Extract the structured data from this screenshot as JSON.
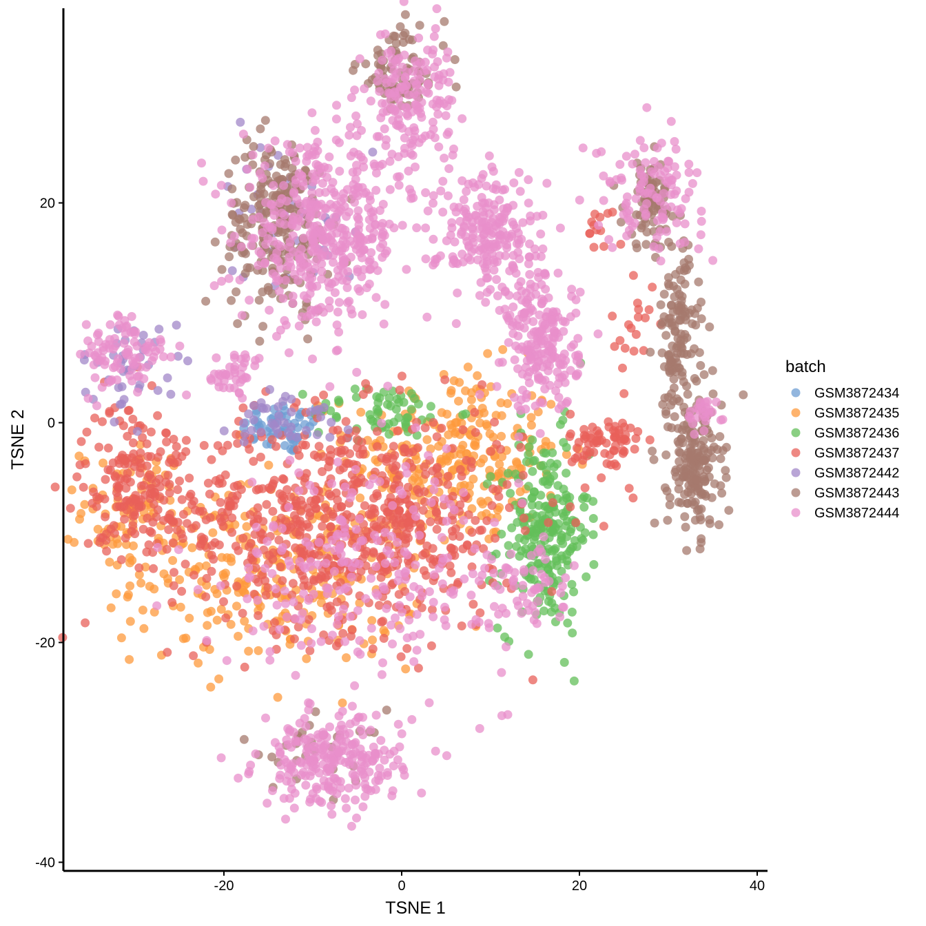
{
  "chart_data": {
    "type": "scatter",
    "xlabel": "TSNE 1",
    "ylabel": "TSNE 2",
    "xlim": [
      -38,
      41
    ],
    "ylim": [
      -41,
      38
    ],
    "x_ticks": [
      -20,
      0,
      20,
      40
    ],
    "y_ticks": [
      -40,
      -20,
      0,
      20
    ],
    "x_tick_labels": [
      "-20",
      "0",
      "20",
      "40"
    ],
    "y_tick_labels": [
      "-40",
      "-20",
      "0",
      "20"
    ],
    "grid": false,
    "legend": {
      "title": "batch",
      "placement": "right",
      "entries": [
        "GSM3872434",
        "GSM3872435",
        "GSM3872436",
        "GSM3872437",
        "GSM3872442",
        "GSM3872443",
        "GSM3872444"
      ]
    },
    "series": [
      {
        "name": "GSM3872434",
        "color": "#6d9ed3",
        "clusters": [
          {
            "cx": -13,
            "cy": -0.5,
            "sx": 2.5,
            "sy": 1.2,
            "n": 60
          }
        ]
      },
      {
        "name": "GSM3872435",
        "color": "#fd9a3c",
        "clusters": [
          {
            "cx": 6,
            "cy": -3,
            "sx": 6,
            "sy": 4,
            "n": 260
          },
          {
            "cx": -14,
            "cy": -14,
            "sx": 8,
            "sy": 4,
            "n": 260
          },
          {
            "cx": -30,
            "cy": -8,
            "sx": 3,
            "sy": 3,
            "n": 90
          }
        ]
      },
      {
        "name": "GSM3872436",
        "color": "#63bf5a",
        "clusters": [
          {
            "cx": 16,
            "cy": -10,
            "sx": 2.5,
            "sy": 4.5,
            "n": 240
          },
          {
            "cx": -2,
            "cy": 1,
            "sx": 4,
            "sy": 1.2,
            "n": 60
          }
        ]
      },
      {
        "name": "GSM3872437",
        "color": "#e8605a",
        "clusters": [
          {
            "cx": -6,
            "cy": -9,
            "sx": 10,
            "sy": 5,
            "n": 700
          },
          {
            "cx": -30,
            "cy": -5,
            "sx": 3,
            "sy": 3.5,
            "n": 170
          },
          {
            "cx": 23,
            "cy": -2,
            "sx": 2,
            "sy": 1.5,
            "n": 70
          },
          {
            "cx": 26,
            "cy": 8,
            "sx": 1.2,
            "sy": 3,
            "n": 20
          },
          {
            "cx": 22,
            "cy": 18,
            "sx": 0.6,
            "sy": 1,
            "n": 12
          }
        ]
      },
      {
        "name": "GSM3872442",
        "color": "#a287c8",
        "clusters": [
          {
            "cx": -13,
            "cy": 0.5,
            "sx": 3,
            "sy": 1.5,
            "n": 40
          },
          {
            "cx": -30,
            "cy": 5,
            "sx": 3,
            "sy": 2,
            "n": 40
          },
          {
            "cx": -13,
            "cy": 20,
            "sx": 4,
            "sy": 4,
            "n": 40
          }
        ]
      },
      {
        "name": "GSM3872443",
        "color": "#a57a6e",
        "clusters": [
          {
            "cx": -14,
            "cy": 18,
            "sx": 3,
            "sy": 4,
            "n": 230
          },
          {
            "cx": 33,
            "cy": -4,
            "sx": 1.5,
            "sy": 3,
            "n": 180
          },
          {
            "cx": 31,
            "cy": 8,
            "sx": 1.2,
            "sy": 4,
            "n": 130
          },
          {
            "cx": 28,
            "cy": 20,
            "sx": 1.5,
            "sy": 2,
            "n": 80
          },
          {
            "cx": 0,
            "cy": 32,
            "sx": 2.5,
            "sy": 2,
            "n": 80
          },
          {
            "cx": -10,
            "cy": -30,
            "sx": 4,
            "sy": 2,
            "n": 30
          }
        ]
      },
      {
        "name": "GSM3872444",
        "color": "#e88fcb",
        "clusters": [
          {
            "cx": -9,
            "cy": 17,
            "sx": 4.5,
            "sy": 4,
            "n": 420
          },
          {
            "cx": 1,
            "cy": 29,
            "sx": 2.5,
            "sy": 3.5,
            "n": 180
          },
          {
            "cx": 10,
            "cy": 17,
            "sx": 3,
            "sy": 3,
            "n": 220
          },
          {
            "cx": 16,
            "cy": 7,
            "sx": 2,
            "sy": 3,
            "n": 200
          },
          {
            "cx": -8,
            "cy": -31,
            "sx": 4,
            "sy": 2,
            "n": 240
          },
          {
            "cx": -31,
            "cy": 6,
            "sx": 2.5,
            "sy": 2,
            "n": 90
          },
          {
            "cx": -19,
            "cy": 4.5,
            "sx": 2,
            "sy": 1,
            "n": 40
          },
          {
            "cx": 28,
            "cy": 21,
            "sx": 3,
            "sy": 2.5,
            "n": 110
          },
          {
            "cx": -4,
            "cy": -13,
            "sx": 8,
            "sy": 5,
            "n": 220
          },
          {
            "cx": 13,
            "cy": -15,
            "sx": 3,
            "sy": 2,
            "n": 60
          },
          {
            "cx": 34,
            "cy": 1,
            "sx": 1,
            "sy": 1,
            "n": 25
          }
        ]
      }
    ]
  }
}
